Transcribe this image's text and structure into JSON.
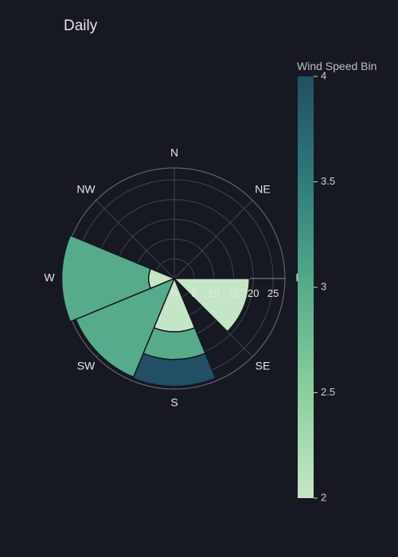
{
  "chart_data": {
    "type": "barpolar",
    "title": "Daily",
    "colorbar": {
      "title": "Wind Speed Bin",
      "range": [
        2,
        4
      ],
      "ticks": [
        "2",
        "2.5",
        "3",
        "3.5",
        "4"
      ],
      "colors": [
        "#c5e6c6",
        "#8bcf9f",
        "#56ac8a",
        "#2f7c7b",
        "#224f63"
      ]
    },
    "directions": [
      "N",
      "NE",
      "E",
      "SE",
      "S",
      "SW",
      "W",
      "NW"
    ],
    "radial_axis": {
      "range": [
        0,
        28
      ],
      "ticks": [
        "0",
        "5",
        "10",
        "15",
        "20",
        "25"
      ]
    },
    "bars": [
      {
        "direction": 112.5,
        "width": 45,
        "base": 0,
        "r": 19,
        "bin": 2
      },
      {
        "direction": 180,
        "width": 45,
        "base": 0,
        "r": 13.5,
        "bin": 2
      },
      {
        "direction": 180,
        "width": 45,
        "base": 13.5,
        "r": 7,
        "bin": 3
      },
      {
        "direction": 180,
        "width": 45,
        "base": 20.5,
        "r": 6.8,
        "bin": 4
      },
      {
        "direction": 225,
        "width": 45,
        "base": 0,
        "r": 27,
        "bin": 3
      },
      {
        "direction": 270,
        "width": 45,
        "base": 0,
        "r": 6.5,
        "bin": 2
      },
      {
        "direction": 270,
        "width": 45,
        "base": 6.5,
        "r": 22,
        "bin": 3
      }
    ]
  }
}
